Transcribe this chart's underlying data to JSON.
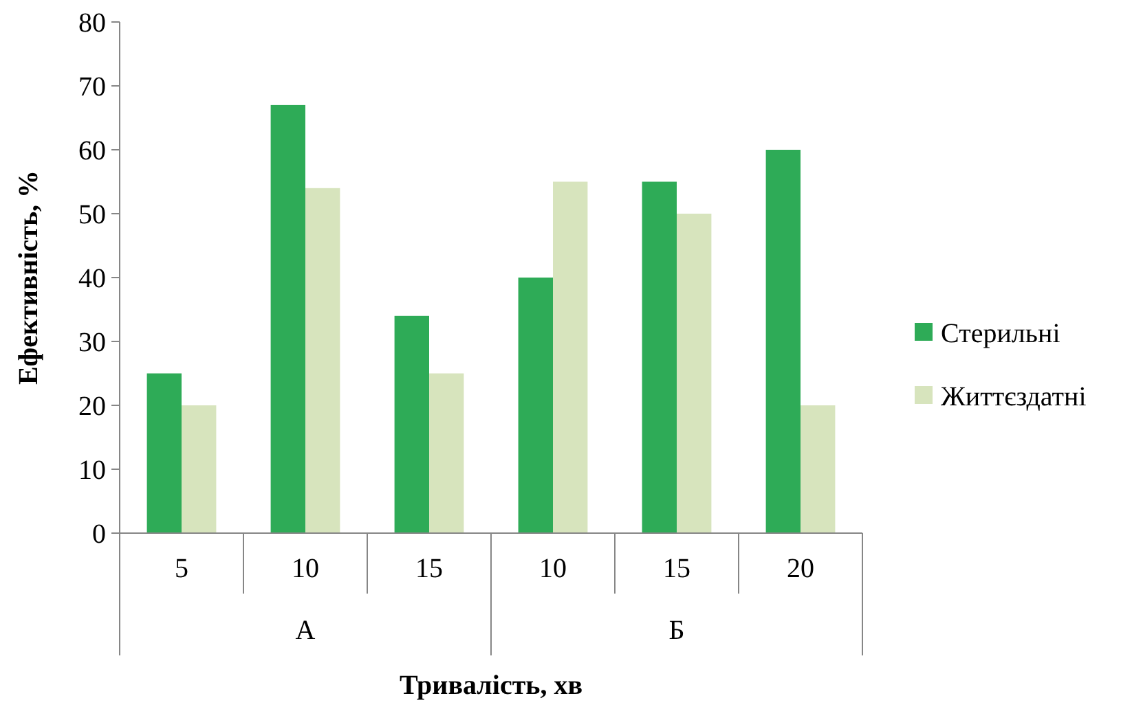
{
  "chart_data": {
    "type": "bar",
    "xlabel": "Тривалість, хв",
    "ylabel": "Ефективність, %",
    "categories": [
      "5",
      "10",
      "15",
      "10",
      "15",
      "20"
    ],
    "series": [
      {
        "name": "Стерильні",
        "color": "#2eab57",
        "values": [
          25,
          67,
          34,
          40,
          55,
          60
        ]
      },
      {
        "name": "Життєздатні",
        "color": "#d7e4bd",
        "values": [
          20,
          54,
          25,
          55,
          50,
          20
        ]
      }
    ],
    "annotations": [
      "А",
      "Б"
    ],
    "ylim": [
      0,
      80
    ],
    "yticks": [
      0,
      10,
      20,
      30,
      40,
      50,
      60,
      70,
      80
    ],
    "grid": false,
    "legend": "right"
  }
}
